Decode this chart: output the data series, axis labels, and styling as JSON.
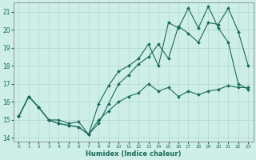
{
  "xlabel": "Humidex (Indice chaleur)",
  "bg_color": "#ceeee8",
  "line_color": "#1a6b5a",
  "grid_color": "#b0d8d0",
  "xlim": [
    -0.5,
    23.5
  ],
  "ylim": [
    13.8,
    21.5
  ],
  "yticks": [
    14,
    15,
    16,
    17,
    18,
    19,
    20,
    21
  ],
  "x_ticks": [
    0,
    1,
    2,
    3,
    4,
    5,
    6,
    7,
    8,
    9,
    10,
    11,
    12,
    13,
    14,
    15,
    16,
    17,
    18,
    19,
    20,
    21,
    22,
    23
  ],
  "line1_x": [
    0,
    1,
    2,
    3,
    4,
    5,
    6,
    7,
    8,
    9,
    10,
    11,
    12,
    13,
    14,
    15,
    16,
    17,
    18,
    19,
    20,
    21,
    22,
    23
  ],
  "line1_y": [
    15.2,
    16.3,
    15.7,
    15.0,
    14.8,
    14.7,
    14.6,
    14.2,
    14.8,
    15.9,
    17.0,
    17.5,
    18.1,
    18.5,
    19.2,
    18.4,
    20.2,
    19.8,
    19.3,
    20.4,
    20.3,
    21.2,
    19.9,
    18.0
  ],
  "line2_x": [
    0,
    1,
    2,
    3,
    4,
    5,
    6,
    7,
    8,
    9,
    10,
    11,
    12,
    13,
    14,
    15,
    16,
    17,
    18,
    19,
    20,
    21,
    22,
    23
  ],
  "line2_y": [
    15.2,
    16.3,
    15.7,
    15.0,
    15.0,
    14.8,
    14.9,
    14.2,
    15.9,
    16.9,
    17.7,
    18.0,
    18.4,
    19.2,
    18.0,
    20.4,
    20.1,
    21.2,
    20.1,
    21.3,
    20.1,
    19.3,
    17.0,
    16.7
  ],
  "line3_x": [
    0,
    1,
    2,
    3,
    4,
    5,
    6,
    7,
    8,
    9,
    10,
    11,
    12,
    13,
    14,
    15,
    16,
    17,
    18,
    19,
    20,
    21,
    22,
    23
  ],
  "line3_y": [
    15.2,
    16.3,
    15.7,
    15.0,
    14.8,
    14.7,
    14.6,
    14.2,
    15.0,
    15.5,
    16.0,
    16.3,
    16.5,
    17.0,
    16.6,
    16.8,
    16.3,
    16.6,
    16.4,
    16.6,
    16.7,
    16.9,
    16.8,
    16.8
  ]
}
